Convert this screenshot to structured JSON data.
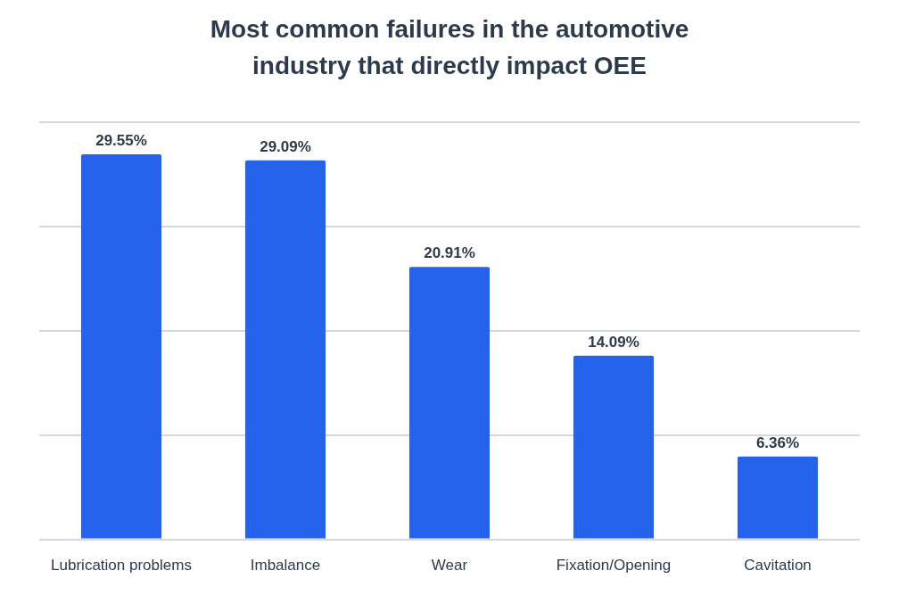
{
  "chart_data": {
    "type": "bar",
    "title": "Most common failures in the automotive industry that directly impact OEE",
    "categories": [
      "Lubrication problems",
      "Imbalance",
      "Wear",
      "Fixation/Opening",
      "Cavitation"
    ],
    "values": [
      29.55,
      29.09,
      20.91,
      14.09,
      6.36
    ],
    "value_labels": [
      "29.55%",
      "29.09%",
      "20.91%",
      "14.09%",
      "6.36%"
    ],
    "color": "#2563eb",
    "ylim": [
      0,
      32
    ],
    "yticks": [
      0,
      8,
      16,
      24,
      32
    ],
    "grid": true,
    "data_labels": true,
    "tick_labels": "x"
  }
}
